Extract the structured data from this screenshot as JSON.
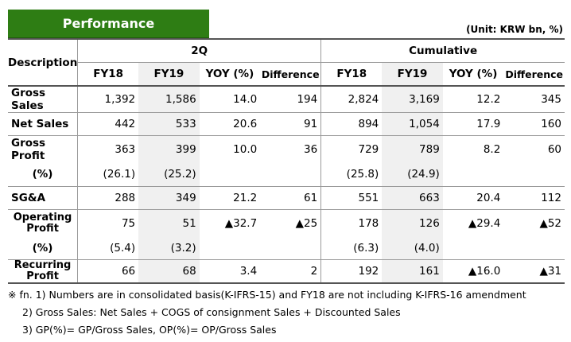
{
  "title": "Performance",
  "unit": "(Unit: KRW bn, %)",
  "header": {
    "description": "Description",
    "group_2q": "2Q",
    "group_cum": "Cumulative",
    "cols": [
      "FY18",
      "FY19",
      "YOY (%)",
      "Difference",
      "FY18",
      "FY19",
      "YOY (%)",
      "Difference"
    ]
  },
  "rows": [
    {
      "label": "Gross Sales",
      "cells": [
        "1,392",
        "1,586",
        "14.0",
        "194",
        "2,824",
        "3,169",
        "12.2",
        "345"
      ]
    },
    {
      "label": "Net Sales",
      "cells": [
        "442",
        "533",
        "20.6",
        "91",
        "894",
        "1,054",
        "17.9",
        "160"
      ]
    },
    {
      "label": "Gross Profit",
      "cells": [
        "363",
        "399",
        "10.0",
        "36",
        "729",
        "789",
        "8.2",
        "60"
      ]
    },
    {
      "label": "(%)",
      "cells": [
        "(26.1)",
        "(25.2)",
        "",
        "",
        "(25.8)",
        "(24.9)",
        "",
        ""
      ]
    },
    {
      "label": "SG&A",
      "cells": [
        "288",
        "349",
        "21.2",
        "61",
        "551",
        "663",
        "20.4",
        "112"
      ]
    },
    {
      "label": "Operating Profit",
      "cells": [
        "75",
        "51",
        "▲32.7",
        "▲25",
        "178",
        "126",
        "▲29.4",
        "▲52"
      ]
    },
    {
      "label": "(%)",
      "cells": [
        "(5.4)",
        "(3.2)",
        "",
        "",
        "(6.3)",
        "(4.0)",
        "",
        ""
      ]
    },
    {
      "label": "Recurring Profit",
      "cells": [
        "66",
        "68",
        "3.4",
        "2",
        "192",
        "161",
        "▲16.0",
        "▲31"
      ]
    }
  ],
  "footnotes": [
    "※ fn. 1) Numbers are in consolidated basis(K-IFRS-15) and FY18 are not including K-IFRS-16 amendment",
    "2) Gross Sales: Net Sales + COGS of consignment Sales + Discounted Sales",
    "3) GP(%)= GP/Gross Sales, OP(%)= OP/Gross Sales"
  ]
}
